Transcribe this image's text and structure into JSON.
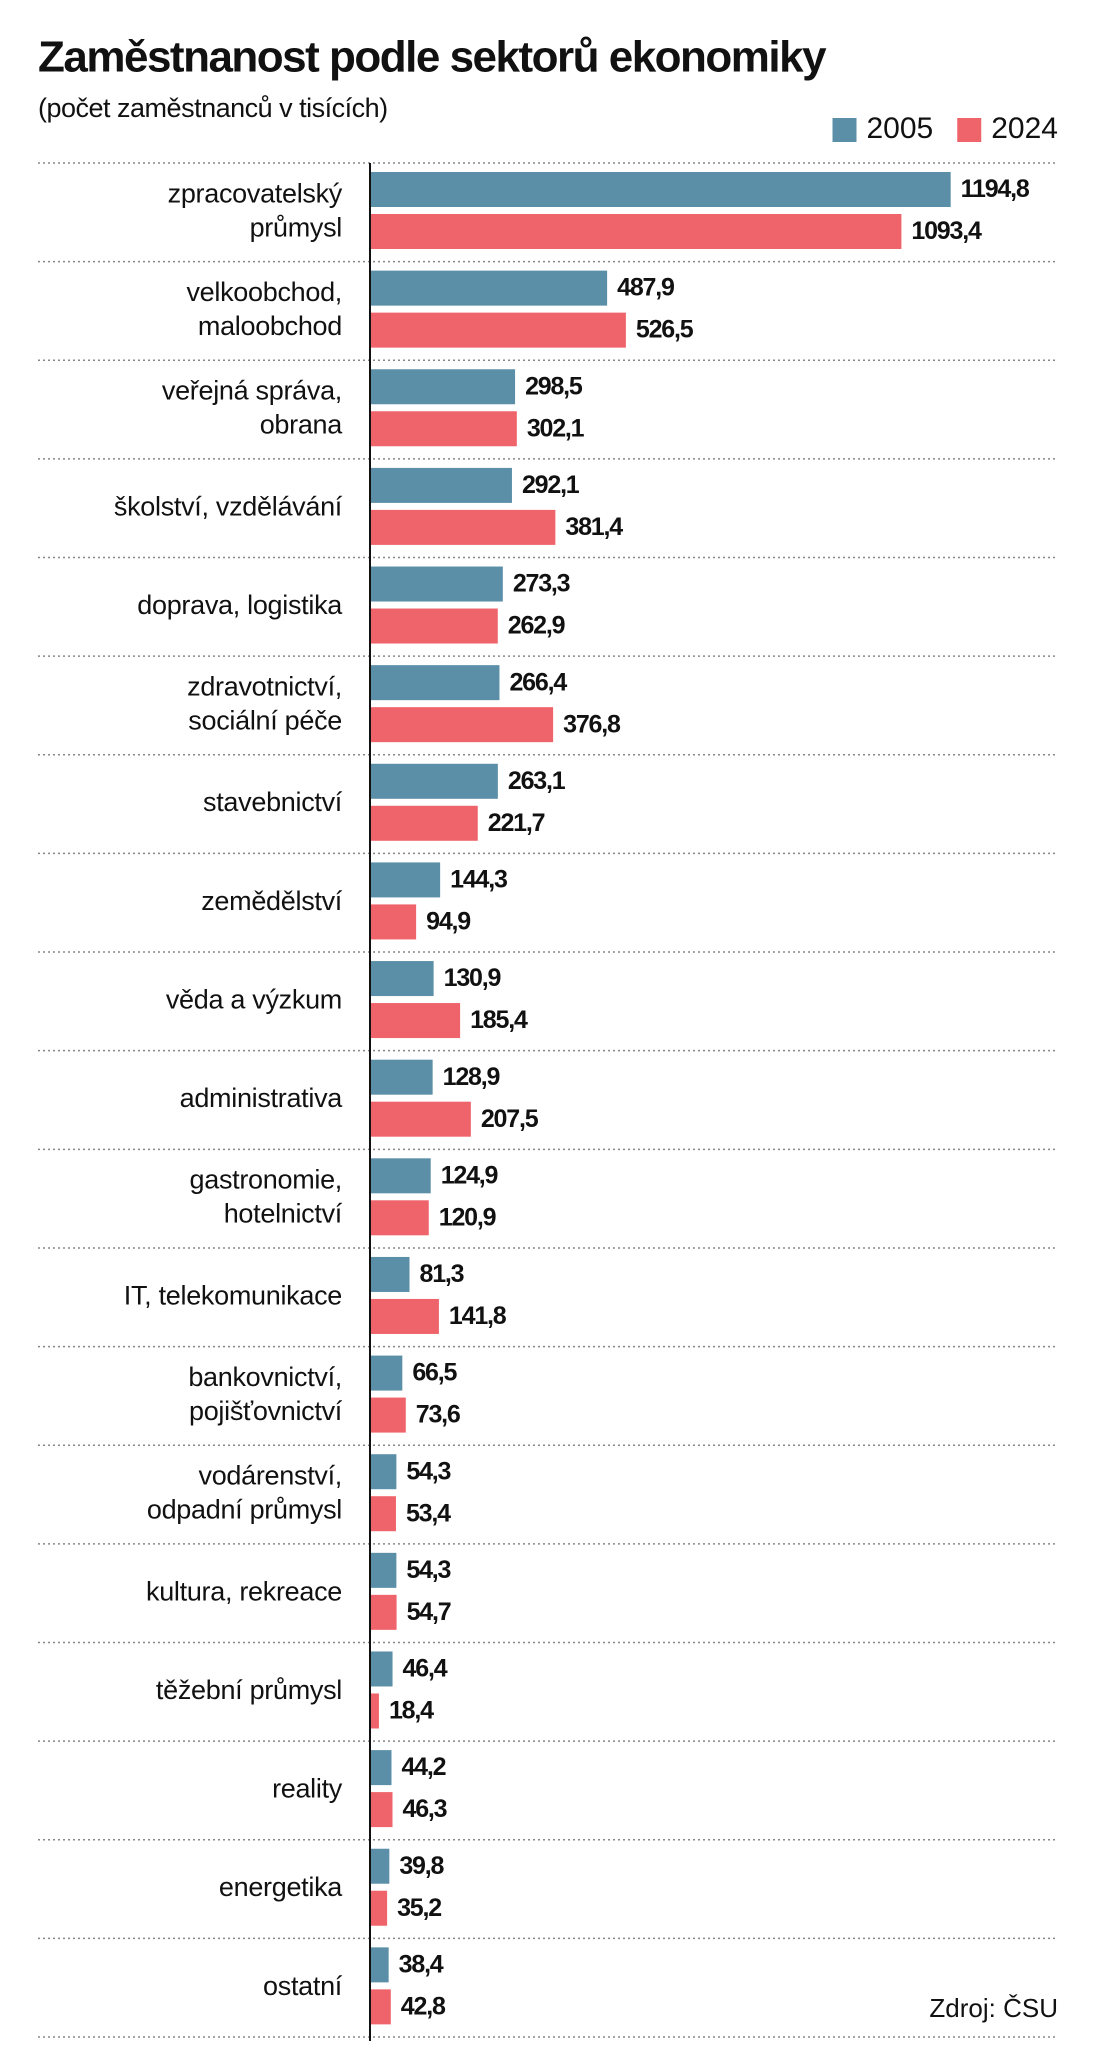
{
  "chart_data": {
    "type": "hbar",
    "title": "Zaměstnanost podle sektorů ekonomiky",
    "subtitle": "(počet zaměstnanců v tisících)",
    "source": "Zdroj: ČSU",
    "categories": [
      "zpracovatelský\nprůmysl",
      "velkoobchod,\nmaloobchod",
      "veřejná správa,\nobrana",
      "školství, vzdělávání",
      "doprava, logistika",
      "zdravotnictví,\nsociální péče",
      "stavebnictví",
      "zemědělství",
      "věda a výzkum",
      "administrativa",
      "gastronomie,\nhotelnictví",
      "IT, telekomunikace",
      "bankovnictví,\npojišťovnictví",
      "vodárenství,\nodpadní průmysl",
      "kultura, rekreace",
      "těžební průmysl",
      "reality",
      "energetika",
      "ostatní"
    ],
    "series": [
      {
        "name": "2005",
        "color": "#5b8fa8",
        "values": [
          1194.8,
          487.9,
          298.5,
          292.1,
          273.3,
          266.4,
          263.1,
          144.3,
          130.9,
          128.9,
          124.9,
          81.3,
          66.5,
          54.3,
          54.3,
          46.4,
          44.2,
          39.8,
          38.4
        ],
        "value_labels": [
          "1194,8",
          "487,9",
          "298,5",
          "292,1",
          "273,3",
          "266,4",
          "263,1",
          "144,3",
          "130,9",
          "128,9",
          "124,9",
          "81,3",
          "66,5",
          "54,3",
          "54,3",
          "46,4",
          "44,2",
          "39,8",
          "38,4"
        ]
      },
      {
        "name": "2024",
        "color": "#ef636b",
        "values": [
          1093.4,
          526.5,
          302.1,
          381.4,
          262.9,
          376.8,
          221.7,
          94.9,
          185.4,
          207.5,
          120.9,
          141.8,
          73.6,
          53.4,
          54.7,
          18.4,
          46.3,
          35.2,
          42.8
        ],
        "value_labels": [
          "1093,4",
          "526,5",
          "302,1",
          "381,4",
          "262,9",
          "376,8",
          "221,7",
          "94,9",
          "185,4",
          "207,5",
          "120,9",
          "141,8",
          "73,6",
          "53,4",
          "54,7",
          "18,4",
          "46,3",
          "35,2",
          "42,8"
        ]
      }
    ],
    "legend": "top-right"
  }
}
